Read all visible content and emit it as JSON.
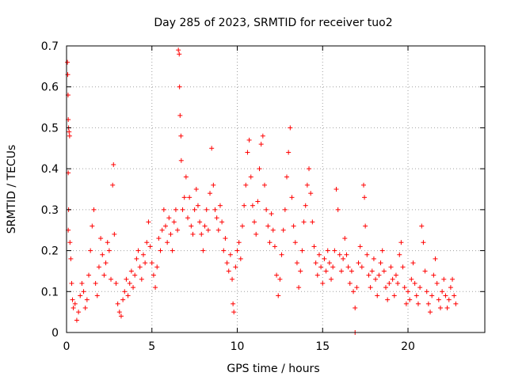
{
  "chart_data": {
    "type": "scatter",
    "title": "Day 285 of 2023, SRMTID for receiver tuo2",
    "xlabel": "GPS time / hours",
    "ylabel": "SRMTID / TECUs",
    "xlim": [
      0,
      24.5
    ],
    "ylim": [
      0,
      0.7
    ],
    "xticks": [
      0,
      5,
      10,
      15,
      20
    ],
    "xtick_labels": [
      "0",
      "5",
      "10",
      "15",
      "20"
    ],
    "yticks": [
      0,
      0.1,
      0.2,
      0.3,
      0.4,
      0.5,
      0.6,
      0.7
    ],
    "ytick_labels": [
      "0",
      "0.1",
      "0.2",
      "0.3",
      "0.4",
      "0.5",
      "0.6",
      "0.7"
    ],
    "grid": true,
    "marker": "+",
    "color": "#ff0000",
    "series": [
      {
        "name": "SRMTID",
        "points": [
          [
            0.05,
            0.66
          ],
          [
            0.07,
            0.63
          ],
          [
            0.09,
            0.58
          ],
          [
            0.1,
            0.52
          ],
          [
            0.12,
            0.5
          ],
          [
            0.15,
            0.49
          ],
          [
            0.1,
            0.39
          ],
          [
            0.12,
            0.3
          ],
          [
            0.18,
            0.48
          ],
          [
            0.1,
            0.25
          ],
          [
            0.2,
            0.22
          ],
          [
            0.25,
            0.18
          ],
          [
            0.3,
            0.12
          ],
          [
            0.35,
            0.08
          ],
          [
            0.4,
            0.06
          ],
          [
            0.5,
            0.07
          ],
          [
            0.6,
            0.03
          ],
          [
            0.7,
            0.05
          ],
          [
            0.8,
            0.09
          ],
          [
            0.9,
            0.12
          ],
          [
            1.0,
            0.1
          ],
          [
            1.1,
            0.06
          ],
          [
            1.2,
            0.08
          ],
          [
            1.3,
            0.14
          ],
          [
            1.4,
            0.2
          ],
          [
            1.5,
            0.26
          ],
          [
            1.6,
            0.3
          ],
          [
            1.7,
            0.12
          ],
          [
            1.8,
            0.09
          ],
          [
            1.9,
            0.16
          ],
          [
            2.0,
            0.23
          ],
          [
            2.1,
            0.19
          ],
          [
            2.2,
            0.14
          ],
          [
            2.3,
            0.17
          ],
          [
            2.4,
            0.22
          ],
          [
            2.5,
            0.2
          ],
          [
            2.6,
            0.13
          ],
          [
            2.7,
            0.36
          ],
          [
            2.75,
            0.41
          ],
          [
            2.8,
            0.24
          ],
          [
            2.9,
            0.12
          ],
          [
            3.0,
            0.07
          ],
          [
            3.1,
            0.05
          ],
          [
            3.2,
            0.04
          ],
          [
            3.3,
            0.08
          ],
          [
            3.4,
            0.1
          ],
          [
            3.5,
            0.13
          ],
          [
            3.6,
            0.09
          ],
          [
            3.7,
            0.12
          ],
          [
            3.8,
            0.15
          ],
          [
            3.9,
            0.11
          ],
          [
            4.0,
            0.14
          ],
          [
            4.1,
            0.18
          ],
          [
            4.2,
            0.2
          ],
          [
            4.3,
            0.16
          ],
          [
            4.4,
            0.13
          ],
          [
            4.5,
            0.19
          ],
          [
            4.6,
            0.17
          ],
          [
            4.7,
            0.22
          ],
          [
            4.8,
            0.27
          ],
          [
            4.9,
            0.21
          ],
          [
            5.0,
            0.17
          ],
          [
            5.1,
            0.14
          ],
          [
            5.2,
            0.11
          ],
          [
            5.3,
            0.16
          ],
          [
            5.4,
            0.23
          ],
          [
            5.5,
            0.2
          ],
          [
            5.6,
            0.25
          ],
          [
            5.7,
            0.3
          ],
          [
            5.8,
            0.26
          ],
          [
            5.9,
            0.22
          ],
          [
            6.0,
            0.28
          ],
          [
            6.1,
            0.24
          ],
          [
            6.2,
            0.2
          ],
          [
            6.3,
            0.27
          ],
          [
            6.4,
            0.3
          ],
          [
            6.5,
            0.25
          ],
          [
            6.55,
            0.69
          ],
          [
            6.6,
            0.68
          ],
          [
            6.62,
            0.6
          ],
          [
            6.65,
            0.53
          ],
          [
            6.7,
            0.48
          ],
          [
            6.72,
            0.42
          ],
          [
            6.8,
            0.3
          ],
          [
            6.9,
            0.33
          ],
          [
            7.0,
            0.38
          ],
          [
            7.1,
            0.28
          ],
          [
            7.2,
            0.33
          ],
          [
            7.3,
            0.26
          ],
          [
            7.4,
            0.24
          ],
          [
            7.5,
            0.3
          ],
          [
            7.6,
            0.35
          ],
          [
            7.7,
            0.31
          ],
          [
            7.8,
            0.27
          ],
          [
            7.9,
            0.24
          ],
          [
            8.0,
            0.2
          ],
          [
            8.1,
            0.26
          ],
          [
            8.2,
            0.3
          ],
          [
            8.3,
            0.25
          ],
          [
            8.4,
            0.34
          ],
          [
            8.5,
            0.45
          ],
          [
            8.6,
            0.36
          ],
          [
            8.7,
            0.3
          ],
          [
            8.8,
            0.28
          ],
          [
            8.9,
            0.25
          ],
          [
            9.0,
            0.31
          ],
          [
            9.1,
            0.27
          ],
          [
            9.2,
            0.2
          ],
          [
            9.3,
            0.23
          ],
          [
            9.4,
            0.17
          ],
          [
            9.5,
            0.15
          ],
          [
            9.6,
            0.19
          ],
          [
            9.7,
            0.13
          ],
          [
            9.75,
            0.07
          ],
          [
            9.8,
            0.05
          ],
          [
            9.9,
            0.16
          ],
          [
            10.0,
            0.2
          ],
          [
            10.1,
            0.22
          ],
          [
            10.2,
            0.18
          ],
          [
            10.3,
            0.26
          ],
          [
            10.4,
            0.31
          ],
          [
            10.5,
            0.36
          ],
          [
            10.6,
            0.44
          ],
          [
            10.7,
            0.47
          ],
          [
            10.8,
            0.38
          ],
          [
            10.9,
            0.31
          ],
          [
            11.0,
            0.27
          ],
          [
            11.1,
            0.24
          ],
          [
            11.2,
            0.32
          ],
          [
            11.3,
            0.4
          ],
          [
            11.4,
            0.46
          ],
          [
            11.5,
            0.48
          ],
          [
            11.6,
            0.36
          ],
          [
            11.7,
            0.3
          ],
          [
            11.8,
            0.26
          ],
          [
            11.9,
            0.22
          ],
          [
            12.0,
            0.29
          ],
          [
            12.1,
            0.25
          ],
          [
            12.2,
            0.21
          ],
          [
            12.3,
            0.14
          ],
          [
            12.4,
            0.09
          ],
          [
            12.5,
            0.13
          ],
          [
            12.6,
            0.19
          ],
          [
            12.7,
            0.25
          ],
          [
            12.8,
            0.3
          ],
          [
            12.9,
            0.38
          ],
          [
            13.0,
            0.44
          ],
          [
            13.1,
            0.5
          ],
          [
            13.2,
            0.33
          ],
          [
            13.3,
            0.26
          ],
          [
            13.4,
            0.22
          ],
          [
            13.5,
            0.17
          ],
          [
            13.6,
            0.11
          ],
          [
            13.7,
            0.15
          ],
          [
            13.8,
            0.2
          ],
          [
            13.9,
            0.27
          ],
          [
            14.0,
            0.31
          ],
          [
            14.1,
            0.36
          ],
          [
            14.2,
            0.4
          ],
          [
            14.3,
            0.34
          ],
          [
            14.4,
            0.27
          ],
          [
            14.5,
            0.21
          ],
          [
            14.6,
            0.17
          ],
          [
            14.7,
            0.14
          ],
          [
            14.8,
            0.19
          ],
          [
            14.9,
            0.16
          ],
          [
            15.0,
            0.12
          ],
          [
            15.1,
            0.18
          ],
          [
            15.2,
            0.15
          ],
          [
            15.3,
            0.2
          ],
          [
            15.4,
            0.17
          ],
          [
            15.5,
            0.13
          ],
          [
            15.6,
            0.16
          ],
          [
            15.7,
            0.2
          ],
          [
            15.8,
            0.35
          ],
          [
            15.9,
            0.3
          ],
          [
            16.0,
            0.19
          ],
          [
            16.1,
            0.15
          ],
          [
            16.2,
            0.18
          ],
          [
            16.3,
            0.23
          ],
          [
            16.4,
            0.19
          ],
          [
            16.5,
            0.16
          ],
          [
            16.6,
            0.12
          ],
          [
            16.7,
            0.15
          ],
          [
            16.8,
            0.1
          ],
          [
            16.9,
            0.06
          ],
          [
            17.0,
            0.11
          ],
          [
            17.1,
            0.17
          ],
          [
            17.2,
            0.21
          ],
          [
            17.3,
            0.16
          ],
          [
            17.4,
            0.36
          ],
          [
            17.45,
            0.33
          ],
          [
            17.5,
            0.26
          ],
          [
            17.6,
            0.19
          ],
          [
            17.7,
            0.14
          ],
          [
            17.8,
            0.11
          ],
          [
            17.9,
            0.15
          ],
          [
            18.0,
            0.18
          ],
          [
            18.1,
            0.13
          ],
          [
            18.2,
            0.09
          ],
          [
            18.3,
            0.14
          ],
          [
            18.4,
            0.17
          ],
          [
            18.5,
            0.2
          ],
          [
            18.6,
            0.15
          ],
          [
            18.7,
            0.11
          ],
          [
            18.8,
            0.08
          ],
          [
            18.9,
            0.12
          ],
          [
            19.0,
            0.16
          ],
          [
            19.1,
            0.13
          ],
          [
            19.2,
            0.09
          ],
          [
            19.3,
            0.14
          ],
          [
            19.4,
            0.12
          ],
          [
            19.5,
            0.19
          ],
          [
            19.6,
            0.22
          ],
          [
            19.7,
            0.16
          ],
          [
            19.8,
            0.11
          ],
          [
            19.9,
            0.07
          ],
          [
            20.0,
            0.1
          ],
          [
            20.1,
            0.08
          ],
          [
            20.2,
            0.13
          ],
          [
            20.3,
            0.17
          ],
          [
            20.4,
            0.12
          ],
          [
            20.5,
            0.09
          ],
          [
            20.6,
            0.07
          ],
          [
            20.7,
            0.11
          ],
          [
            20.8,
            0.26
          ],
          [
            20.9,
            0.22
          ],
          [
            21.0,
            0.15
          ],
          [
            21.1,
            0.1
          ],
          [
            21.2,
            0.07
          ],
          [
            21.3,
            0.05
          ],
          [
            21.4,
            0.09
          ],
          [
            21.5,
            0.14
          ],
          [
            21.6,
            0.18
          ],
          [
            21.7,
            0.12
          ],
          [
            21.8,
            0.08
          ],
          [
            21.9,
            0.06
          ],
          [
            22.0,
            0.1
          ],
          [
            22.1,
            0.13
          ],
          [
            22.2,
            0.09
          ],
          [
            22.3,
            0.06
          ],
          [
            22.4,
            0.08
          ],
          [
            22.5,
            0.11
          ],
          [
            22.6,
            0.13
          ],
          [
            22.7,
            0.09
          ],
          [
            22.8,
            0.07
          ],
          [
            16.9,
            0.0
          ]
        ]
      }
    ]
  }
}
